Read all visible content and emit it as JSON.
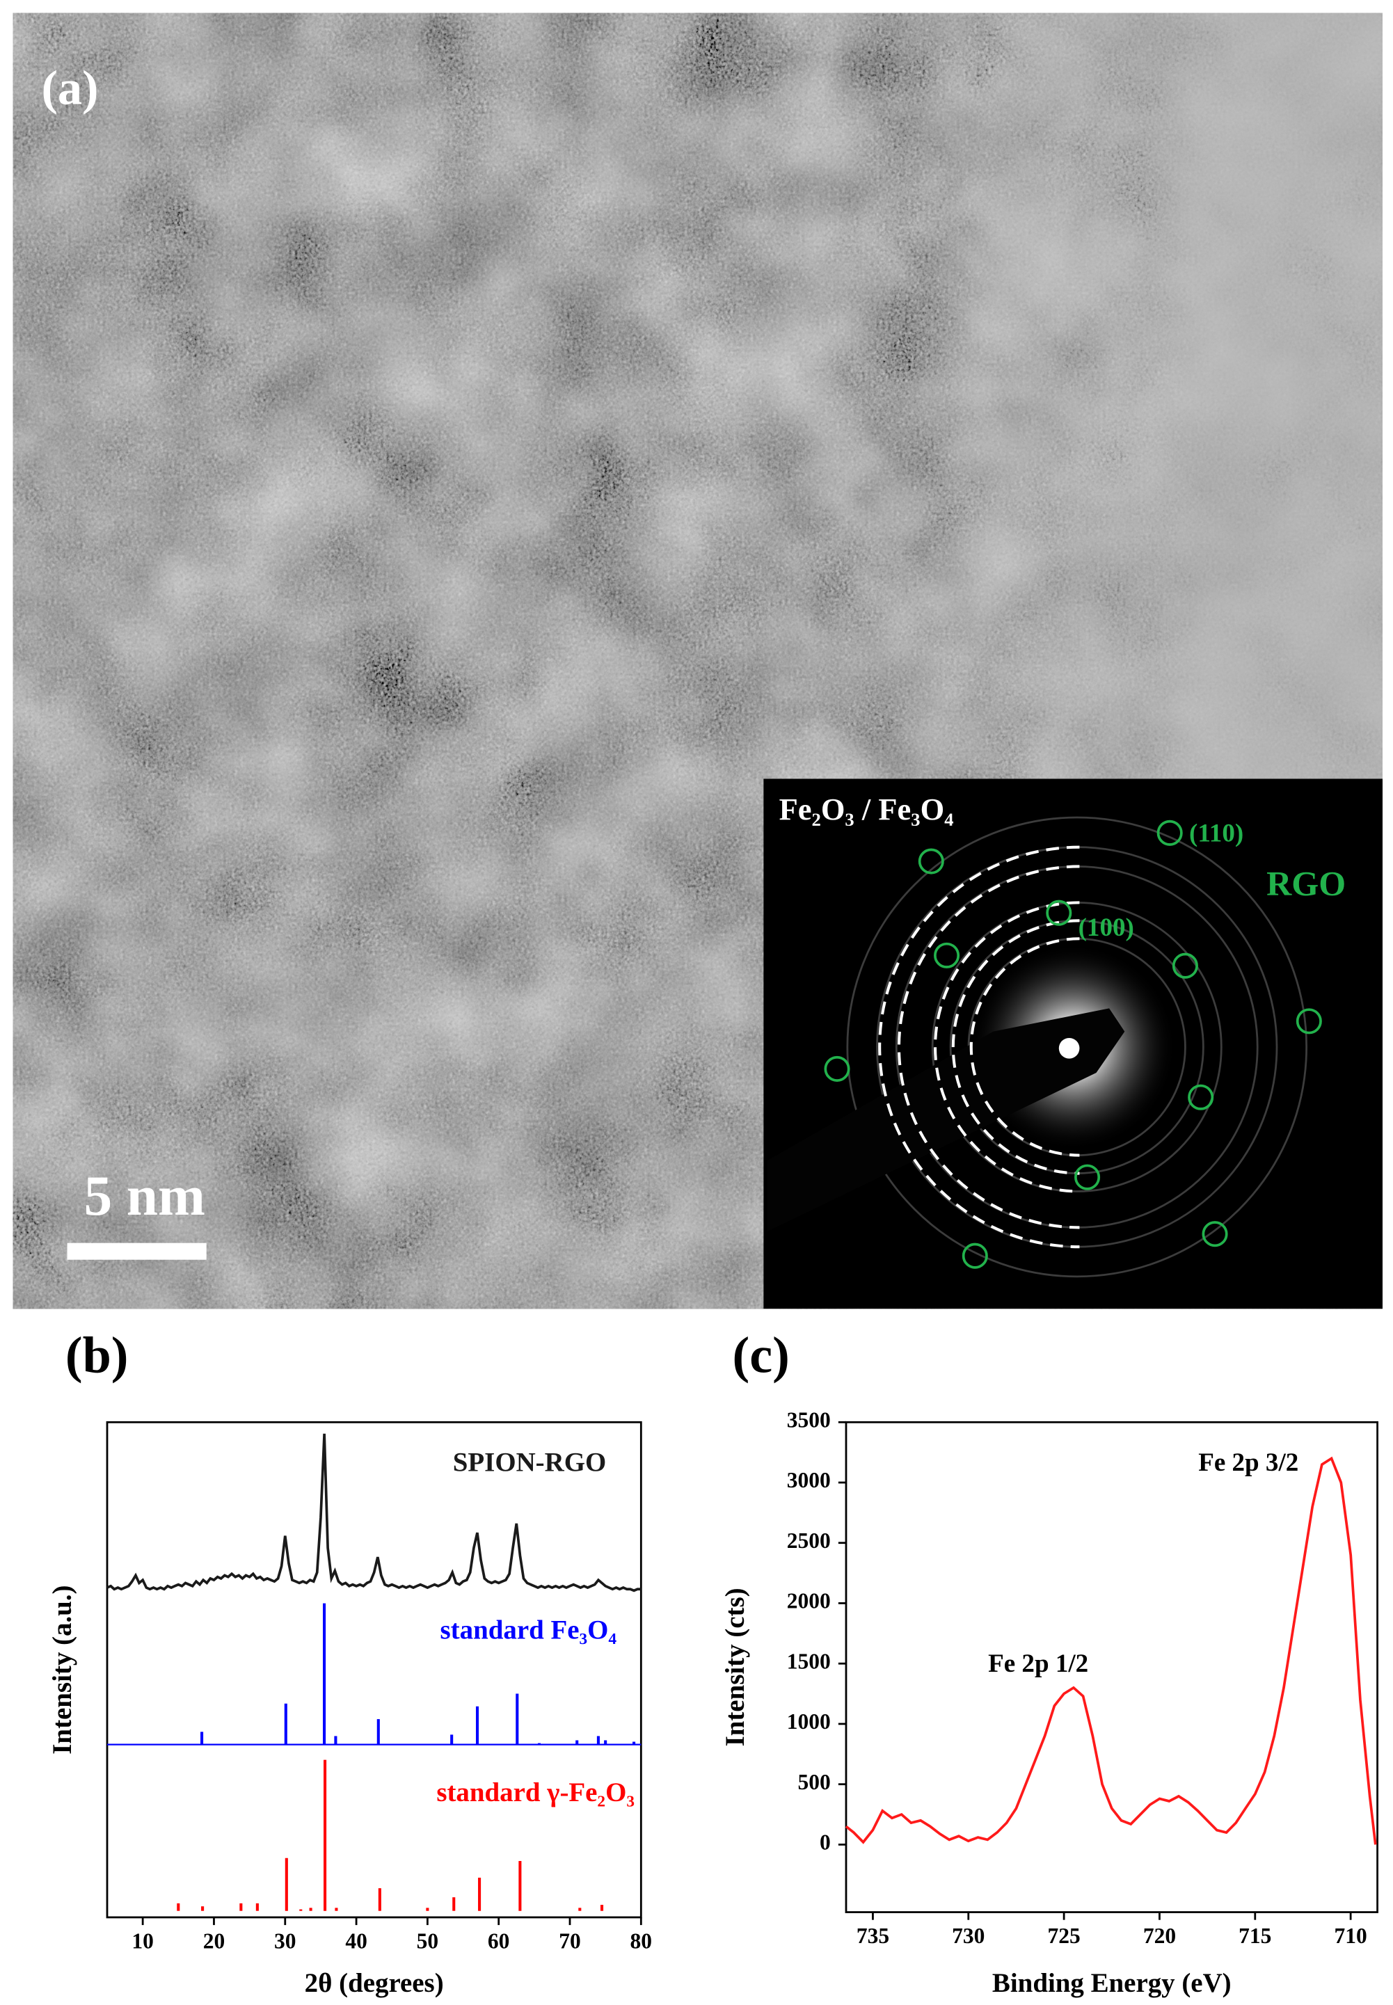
{
  "panel_a": {
    "label": "(a)",
    "scale_bar": "5 nm",
    "inset": {
      "title": "Fe₂O₃ / Fe₃O₄",
      "spots": [
        "(110)",
        "(100)"
      ],
      "label": "RGO"
    }
  },
  "chart_data": [
    {
      "type": "stack",
      "panel_label": "(b)",
      "xlabel": "2θ (degrees)",
      "ylabel": "Intensity (a.u.)",
      "xlim": [
        5,
        80
      ],
      "xticks": [
        10,
        20,
        30,
        40,
        50,
        60,
        70,
        80
      ],
      "series": [
        {
          "name": "SPION-RGO",
          "color": "#1a1a1a",
          "style": "line",
          "ylim": [
            0,
            110
          ],
          "x": [
            5,
            5.5,
            6,
            6.5,
            7,
            7.5,
            8,
            8.5,
            9,
            9.5,
            10,
            10.5,
            11,
            11.5,
            12,
            12.5,
            13,
            13.5,
            14,
            14.5,
            15,
            15.5,
            16,
            16.5,
            17,
            17.5,
            18,
            18.5,
            19,
            19.5,
            20,
            20.5,
            21,
            21.5,
            22,
            22.5,
            23,
            23.5,
            24,
            24.5,
            25,
            25.5,
            26,
            26.5,
            27,
            27.5,
            28,
            28.5,
            29,
            29.5,
            30,
            30.5,
            31,
            31.5,
            32,
            32.5,
            33,
            33.5,
            34,
            34.5,
            35,
            35.5,
            36,
            36.5,
            37,
            37.5,
            38,
            38.5,
            39,
            39.5,
            40,
            40.5,
            41,
            41.5,
            42,
            42.5,
            43,
            43.5,
            44,
            44.5,
            45,
            45.5,
            46,
            46.5,
            47,
            47.5,
            48,
            48.5,
            49,
            49.5,
            50,
            50.5,
            51,
            51.5,
            52,
            52.5,
            53,
            53.5,
            54,
            54.5,
            55,
            55.5,
            56,
            56.5,
            57,
            57.5,
            58,
            58.5,
            59,
            59.5,
            60,
            60.5,
            61,
            61.5,
            62,
            62.5,
            63,
            63.5,
            64,
            64.5,
            65,
            65.5,
            66,
            66.5,
            67,
            67.5,
            68,
            68.5,
            69,
            69.5,
            70,
            70.5,
            71,
            71.5,
            72,
            72.5,
            73,
            73.5,
            74,
            74.5,
            75,
            75.5,
            76,
            76.5,
            77,
            77.5,
            78,
            78.5,
            79,
            79.5,
            80
          ],
          "values": [
            4,
            5,
            3,
            4,
            3,
            4,
            5,
            8,
            12,
            7,
            9,
            4,
            3,
            4,
            3,
            4,
            3,
            5,
            4,
            5,
            6,
            5,
            7,
            6,
            5,
            8,
            6,
            9,
            7,
            10,
            9,
            11,
            10,
            12,
            11,
            13,
            11,
            12,
            10,
            12,
            11,
            13,
            10,
            11,
            9,
            10,
            9,
            8,
            10,
            18,
            38,
            20,
            9,
            8,
            7,
            8,
            7,
            9,
            8,
            14,
            50,
            105,
            30,
            10,
            15,
            8,
            6,
            7,
            5,
            6,
            5,
            6,
            5,
            7,
            8,
            14,
            24,
            12,
            6,
            5,
            6,
            5,
            4,
            5,
            4,
            5,
            4,
            5,
            6,
            5,
            4,
            5,
            6,
            5,
            6,
            7,
            9,
            14,
            7,
            6,
            8,
            9,
            14,
            30,
            40,
            22,
            10,
            8,
            7,
            8,
            7,
            8,
            9,
            13,
            30,
            46,
            25,
            10,
            7,
            6,
            5,
            4,
            5,
            4,
            5,
            4,
            5,
            4,
            5,
            4,
            5,
            6,
            5,
            4,
            5,
            4,
            5,
            6,
            9,
            7,
            5,
            4,
            3,
            4,
            3,
            4,
            3,
            3,
            2,
            3,
            3
          ]
        },
        {
          "name": "standard Fe₃O₄",
          "color": "#0000ff",
          "style": "stick",
          "ylim": [
            0,
            105
          ],
          "x": [
            18.3,
            30.1,
            35.5,
            37.1,
            43.1,
            53.4,
            57.0,
            62.6,
            65.7,
            71.0,
            74.0,
            75.0,
            79.0
          ],
          "values": [
            9,
            29,
            100,
            6,
            18,
            7,
            27,
            36,
            1,
            3,
            6,
            3,
            2
          ]
        },
        {
          "name": "standard γ-Fe₂O₃",
          "color": "#ff0000",
          "style": "stick",
          "ylim": [
            0,
            105
          ],
          "x": [
            15.0,
            18.4,
            23.8,
            26.1,
            30.2,
            32.2,
            33.6,
            35.6,
            37.2,
            43.3,
            50.0,
            53.7,
            57.3,
            63.0,
            71.4,
            74.5
          ],
          "values": [
            5,
            3,
            5,
            5,
            35,
            1,
            2,
            100,
            2,
            15,
            2,
            9,
            22,
            33,
            2,
            4
          ]
        }
      ]
    },
    {
      "type": "line",
      "panel_label": "(c)",
      "xlabel": "Binding Energy (eV)",
      "ylabel": "Intensity (cts)",
      "xlim": [
        736.4,
        708.6
      ],
      "ylim": [
        -560,
        3500
      ],
      "xticks": [
        735,
        730,
        725,
        720,
        715,
        710
      ],
      "yticks": [
        0,
        500,
        1000,
        1500,
        2000,
        2500,
        3000,
        3500
      ],
      "color": "#ff1a1a",
      "annotations": [
        "Fe 2p 3/2",
        "Fe 2p 1/2"
      ],
      "x": [
        736.4,
        736,
        735.5,
        735,
        734.5,
        734,
        733.5,
        733,
        732.5,
        732,
        731.5,
        731,
        730.5,
        730,
        729.5,
        729,
        728.5,
        728,
        727.5,
        727,
        726.5,
        726,
        725.5,
        725,
        724.5,
        724,
        723.5,
        723,
        722.5,
        722,
        721.5,
        721,
        720.5,
        720,
        719.5,
        719,
        718.5,
        718,
        717.5,
        717,
        716.5,
        716,
        715.5,
        715,
        714.5,
        714,
        713.5,
        713,
        712.5,
        712,
        711.5,
        711,
        710.5,
        710,
        709.5,
        709,
        708.7
      ],
      "values": [
        150,
        100,
        20,
        120,
        280,
        220,
        250,
        180,
        200,
        150,
        90,
        40,
        70,
        30,
        60,
        40,
        100,
        180,
        300,
        500,
        700,
        900,
        1150,
        1250,
        1300,
        1230,
        900,
        500,
        300,
        200,
        170,
        250,
        330,
        380,
        360,
        400,
        350,
        280,
        200,
        120,
        100,
        180,
        300,
        420,
        600,
        900,
        1300,
        1800,
        2300,
        2800,
        3150,
        3200,
        3000,
        2400,
        1200,
        400,
        0
      ]
    }
  ]
}
